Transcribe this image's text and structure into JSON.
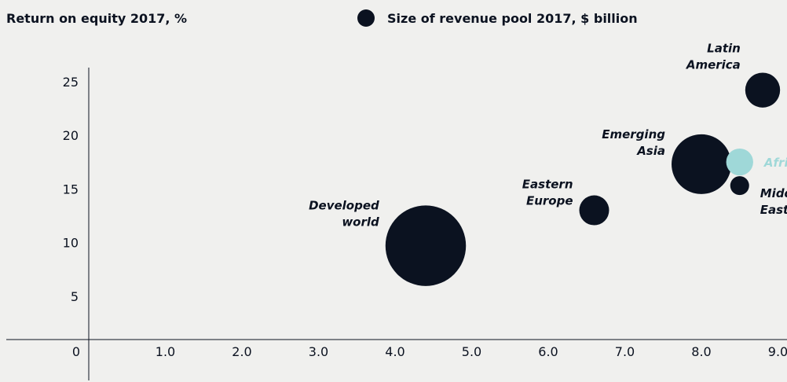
{
  "header": {
    "y_title": "Return on equity 2017, %",
    "legend_label": "Size of revenue pool 2017, $ billion"
  },
  "colors": {
    "background": "#f0f0ee",
    "bubble": "#0b1220",
    "highlight": "#9fd8d8",
    "axis": "#0b1220"
  },
  "chart_data": {
    "type": "scatter",
    "title": "",
    "xlabel": "",
    "ylabel": "Return on equity 2017, %",
    "size_legend": "Size of revenue pool 2017, $ billion",
    "xlim": [
      0,
      9.0
    ],
    "ylim": [
      0,
      25
    ],
    "x_ticks": [
      "0",
      "1.0",
      "2.0",
      "3.0",
      "4.0",
      "5.0",
      "6.0",
      "7.0",
      "8.0",
      "9.0"
    ],
    "y_ticks": [
      "5",
      "10",
      "15",
      "20",
      "25"
    ],
    "points": [
      {
        "label": [
          "Developed",
          "world"
        ],
        "x": 4.4,
        "y": 9.7,
        "size": 40,
        "highlight": false,
        "label_side": "left"
      },
      {
        "label": [
          "Eastern",
          "Europe"
        ],
        "x": 6.6,
        "y": 13.0,
        "size": 5.5,
        "highlight": false,
        "label_side": "left"
      },
      {
        "label": [
          "Emerging",
          "Asia"
        ],
        "x": 8.0,
        "y": 17.3,
        "size": 22,
        "highlight": false,
        "label_side": "left"
      },
      {
        "label": [
          "Latin",
          "America"
        ],
        "x": 8.8,
        "y": 24.2,
        "size": 7.5,
        "highlight": false,
        "label_side": "left-above"
      },
      {
        "label": [
          "Africa"
        ],
        "x": 8.5,
        "y": 17.5,
        "size": 4.5,
        "highlight": true,
        "label_side": "right"
      },
      {
        "label": [
          "Middle",
          "East"
        ],
        "x": 8.5,
        "y": 15.3,
        "size": 2.2,
        "highlight": false,
        "label_side": "right-below"
      }
    ]
  }
}
